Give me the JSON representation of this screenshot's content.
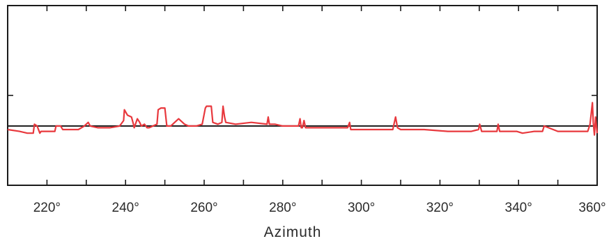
{
  "chart_data": {
    "type": "line",
    "title": "",
    "xlabel": "Azimuth",
    "ylabel": "",
    "xlim": [
      210,
      360
    ],
    "ylim": [
      0,
      1
    ],
    "grid": false,
    "x_ticks": [
      210,
      220,
      230,
      240,
      250,
      260,
      270,
      280,
      290,
      300,
      310,
      320,
      330,
      340,
      350,
      360
    ],
    "x_tick_labels": [
      {
        "value": 220,
        "label": "220°"
      },
      {
        "value": 240,
        "label": "240°"
      },
      {
        "value": 260,
        "label": "260°"
      },
      {
        "value": 280,
        "label": "280°"
      },
      {
        "value": 300,
        "label": "300°"
      },
      {
        "value": 320,
        "label": "320°"
      },
      {
        "value": 340,
        "label": "340°"
      },
      {
        "value": 360,
        "label": "360°"
      }
    ],
    "y_ticks": [
      0.5
    ],
    "reference_line": {
      "y": 0.33,
      "color": "#1a1a1a"
    },
    "series": [
      {
        "color": "#e8383d",
        "x": [
          210,
          213,
          215,
          216.5,
          216.8,
          217.5,
          218.2,
          218.5,
          222,
          222.3,
          223.5,
          224,
          228,
          229.5,
          230.5,
          231,
          233,
          236,
          238.5,
          239.5,
          239.7,
          240.5,
          241.5,
          242,
          242.2,
          243,
          243.6,
          244,
          244.8,
          245.5,
          246,
          248,
          248.3,
          249,
          250,
          250.5,
          251.5,
          252.5,
          253.5,
          254.5,
          255,
          256,
          258,
          259.5,
          260.3,
          260.6,
          261.8,
          262.2,
          263.5,
          264.5,
          264.8,
          265.2,
          265.5,
          268,
          272,
          276,
          276.3,
          276.6,
          278,
          280,
          284,
          284.4,
          284.7,
          285,
          285.4,
          285.8,
          288,
          294,
          296.5,
          297,
          297.3,
          300,
          305,
          308,
          308.7,
          309.2,
          310,
          316,
          322,
          328,
          329.8,
          330.1,
          330.6,
          334.5,
          334.8,
          335.2,
          337,
          339.5,
          341,
          344,
          345.8,
          346.1,
          346.5,
          350,
          354,
          357.2,
          357.6,
          358.2,
          358.8,
          359,
          359.3,
          359.6,
          360
        ],
        "y": [
          0.31,
          0.3,
          0.29,
          0.29,
          0.34,
          0.33,
          0.29,
          0.3,
          0.3,
          0.33,
          0.33,
          0.31,
          0.31,
          0.33,
          0.35,
          0.33,
          0.32,
          0.32,
          0.33,
          0.36,
          0.42,
          0.39,
          0.38,
          0.34,
          0.32,
          0.37,
          0.35,
          0.33,
          0.34,
          0.32,
          0.32,
          0.34,
          0.42,
          0.43,
          0.43,
          0.33,
          0.33,
          0.35,
          0.37,
          0.35,
          0.34,
          0.33,
          0.33,
          0.34,
          0.43,
          0.44,
          0.44,
          0.35,
          0.34,
          0.35,
          0.44,
          0.38,
          0.35,
          0.34,
          0.35,
          0.34,
          0.38,
          0.34,
          0.34,
          0.33,
          0.33,
          0.37,
          0.32,
          0.32,
          0.36,
          0.32,
          0.32,
          0.32,
          0.32,
          0.35,
          0.31,
          0.31,
          0.31,
          0.31,
          0.38,
          0.32,
          0.31,
          0.31,
          0.3,
          0.3,
          0.31,
          0.34,
          0.3,
          0.3,
          0.34,
          0.3,
          0.3,
          0.3,
          0.29,
          0.3,
          0.3,
          0.3,
          0.33,
          0.3,
          0.3,
          0.3,
          0.3,
          0.34,
          0.46,
          0.35,
          0.28,
          0.38,
          0.29
        ]
      }
    ]
  }
}
